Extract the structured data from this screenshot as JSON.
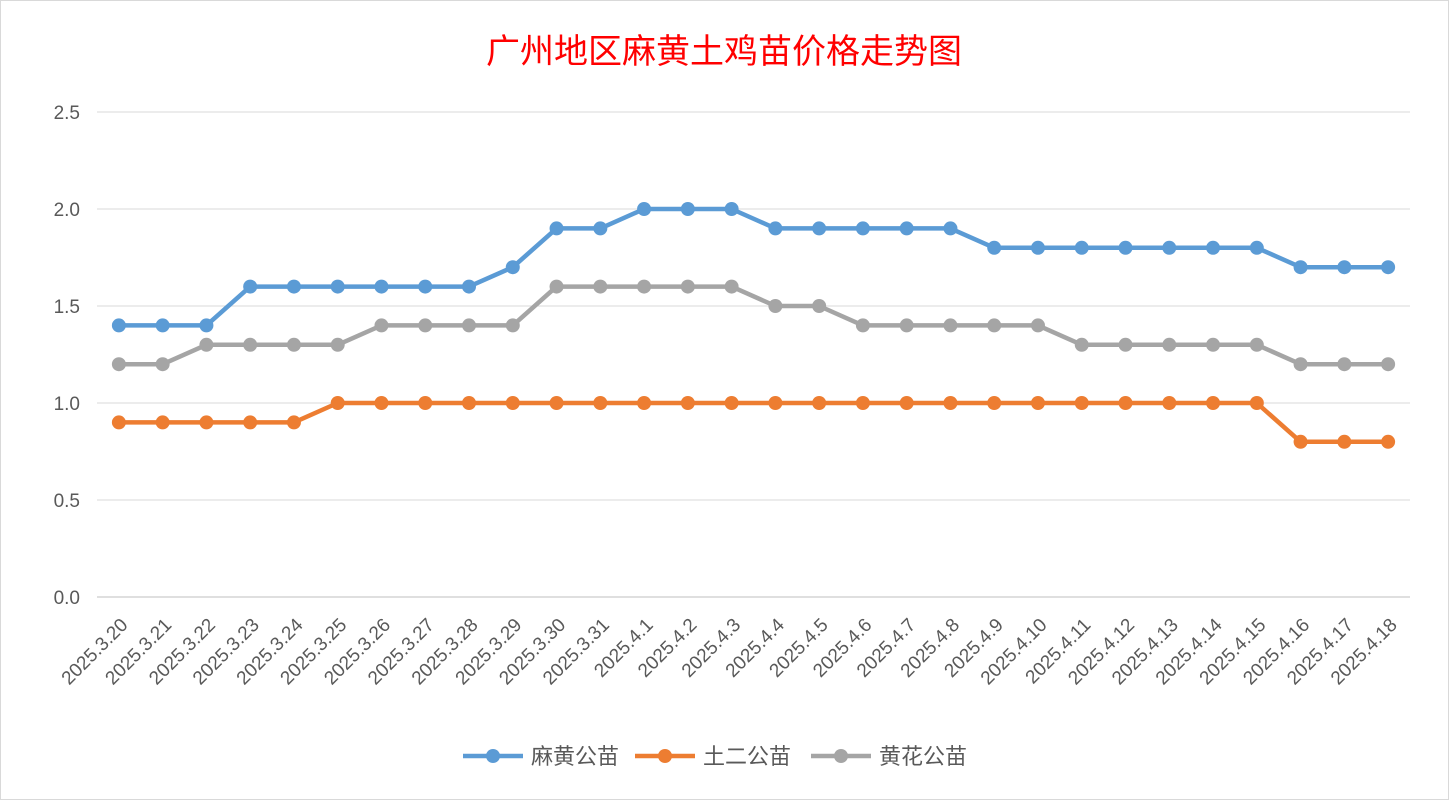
{
  "chart_data": {
    "type": "line",
    "title": "广州地区麻黄土鸡苗价格走势图",
    "xlabel": "",
    "ylabel": "",
    "ylim": [
      0,
      2.5
    ],
    "y_ticks": [
      "0.0",
      "0.5",
      "1.0",
      "1.5",
      "2.0",
      "2.5"
    ],
    "grid": true,
    "legend_position": "bottom",
    "categories": [
      "2025.3.20",
      "2025.3.21",
      "2025.3.22",
      "2025.3.23",
      "2025.3.24",
      "2025.3.25",
      "2025.3.26",
      "2025.3.27",
      "2025.3.28",
      "2025.3.29",
      "2025.3.30",
      "2025.3.31",
      "2025.4.1",
      "2025.4.2",
      "2025.4.3",
      "2025.4.4",
      "2025.4.5",
      "2025.4.6",
      "2025.4.7",
      "2025.4.8",
      "2025.4.9",
      "2025.4.10",
      "2025.4.11",
      "2025.4.12",
      "2025.4.13",
      "2025.4.14",
      "2025.4.15",
      "2025.4.16",
      "2025.4.17",
      "2025.4.18"
    ],
    "series": [
      {
        "name": "麻黄公苗",
        "color": "#5b9bd5",
        "values": [
          1.4,
          1.4,
          1.4,
          1.6,
          1.6,
          1.6,
          1.6,
          1.6,
          1.6,
          1.7,
          1.9,
          1.9,
          2.0,
          2.0,
          2.0,
          1.9,
          1.9,
          1.9,
          1.9,
          1.9,
          1.8,
          1.8,
          1.8,
          1.8,
          1.8,
          1.8,
          1.8,
          1.7,
          1.7,
          1.7
        ]
      },
      {
        "name": "土二公苗",
        "color": "#ed7d31",
        "values": [
          0.9,
          0.9,
          0.9,
          0.9,
          0.9,
          1.0,
          1.0,
          1.0,
          1.0,
          1.0,
          1.0,
          1.0,
          1.0,
          1.0,
          1.0,
          1.0,
          1.0,
          1.0,
          1.0,
          1.0,
          1.0,
          1.0,
          1.0,
          1.0,
          1.0,
          1.0,
          1.0,
          0.8,
          0.8,
          0.8
        ]
      },
      {
        "name": "黄花公苗",
        "color": "#a5a5a5",
        "values": [
          1.2,
          1.2,
          1.3,
          1.3,
          1.3,
          1.3,
          1.4,
          1.4,
          1.4,
          1.4,
          1.6,
          1.6,
          1.6,
          1.6,
          1.6,
          1.5,
          1.5,
          1.4,
          1.4,
          1.4,
          1.4,
          1.4,
          1.3,
          1.3,
          1.3,
          1.3,
          1.3,
          1.2,
          1.2,
          1.2
        ]
      }
    ]
  }
}
